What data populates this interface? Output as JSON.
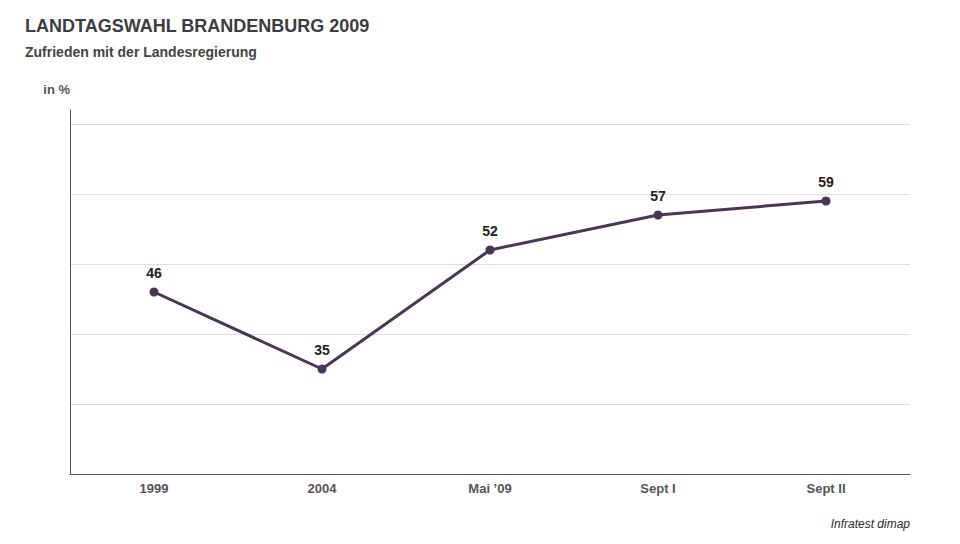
{
  "chart_data": {
    "type": "line",
    "title": "LANDTAGSWAHL BRANDENBURG 2009",
    "subtitle": "Zufrieden mit der Landesregierung",
    "ylabel": "in %",
    "source": "Infratest dimap",
    "categories": [
      "1999",
      "2004",
      "Mai ’09",
      "Sept I",
      "Sept II"
    ],
    "values": [
      46,
      35,
      52,
      57,
      59
    ],
    "color": "#4a3654",
    "ylim": [
      20,
      72
    ],
    "yticks": [
      20,
      30,
      40,
      50,
      60,
      70
    ],
    "grid": true,
    "tick_labels": "x",
    "data_labels": true
  }
}
